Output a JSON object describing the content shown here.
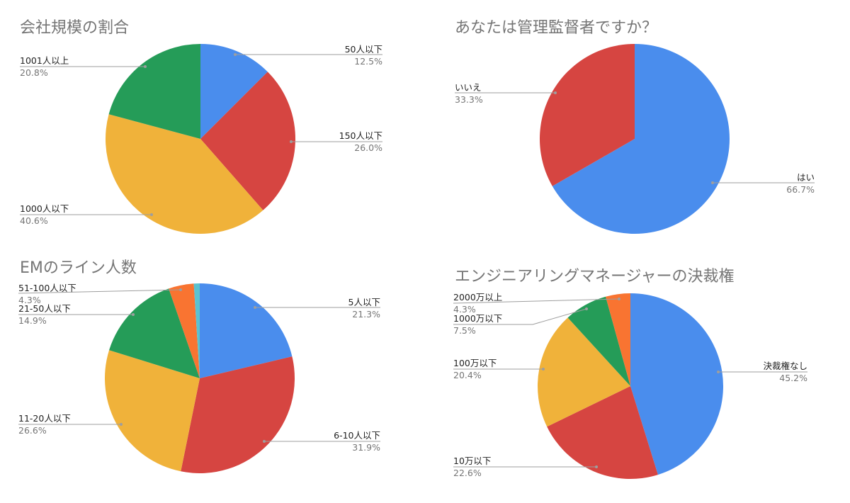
{
  "colors": {
    "blue": "#4a8ded",
    "red": "#d64541",
    "yellow": "#f0b23a",
    "green": "#259c58",
    "orange": "#f97431",
    "teal": "#5bc2cf"
  },
  "chart_data": [
    {
      "type": "pie",
      "title": "会社規模の割合",
      "slices": [
        {
          "label": "50人以下",
          "value": 12.5,
          "value_label": "12.5%",
          "color": "#4a8ded"
        },
        {
          "label": "150人以下",
          "value": 26.0,
          "value_label": "26.0%",
          "color": "#d64541"
        },
        {
          "label": "1000人以下",
          "value": 40.6,
          "value_label": "40.6%",
          "color": "#f0b23a"
        },
        {
          "label": "1001人以上",
          "value": 20.8,
          "value_label": "20.8%",
          "color": "#259c58"
        }
      ]
    },
    {
      "type": "pie",
      "title": "あなたは管理監督者ですか？",
      "slices": [
        {
          "label": "はい",
          "value": 66.7,
          "value_label": "66.7%",
          "color": "#4a8ded"
        },
        {
          "label": "いいえ",
          "value": 33.3,
          "value_label": "33.3%",
          "color": "#d64541"
        }
      ]
    },
    {
      "type": "pie",
      "title": "EMのライン人数",
      "slices": [
        {
          "label": "5人以下",
          "value": 21.3,
          "value_label": "21.3%",
          "color": "#4a8ded"
        },
        {
          "label": "6-10人以下",
          "value": 31.9,
          "value_label": "31.9%",
          "color": "#d64541"
        },
        {
          "label": "11-20人以下",
          "value": 26.6,
          "value_label": "26.6%",
          "color": "#f0b23a"
        },
        {
          "label": "21-50人以下",
          "value": 14.9,
          "value_label": "14.9%",
          "color": "#259c58"
        },
        {
          "label": "51-100人以下",
          "value": 4.3,
          "value_label": "4.3%",
          "color": "#f97431"
        },
        {
          "label": "",
          "value": 1.0,
          "value_label": "",
          "color": "#5bc2cf"
        }
      ]
    },
    {
      "type": "pie",
      "title": "エンジニアリングマネージャーの決裁権",
      "slices": [
        {
          "label": "決裁権なし",
          "value": 45.2,
          "value_label": "45.2%",
          "color": "#4a8ded"
        },
        {
          "label": "10万以下",
          "value": 22.6,
          "value_label": "22.6%",
          "color": "#d64541"
        },
        {
          "label": "100万以下",
          "value": 20.4,
          "value_label": "20.4%",
          "color": "#f0b23a"
        },
        {
          "label": "1000万以下",
          "value": 7.5,
          "value_label": "7.5%",
          "color": "#259c58"
        },
        {
          "label": "2000万以上",
          "value": 4.3,
          "value_label": "4.3%",
          "color": "#f97431"
        }
      ]
    }
  ]
}
